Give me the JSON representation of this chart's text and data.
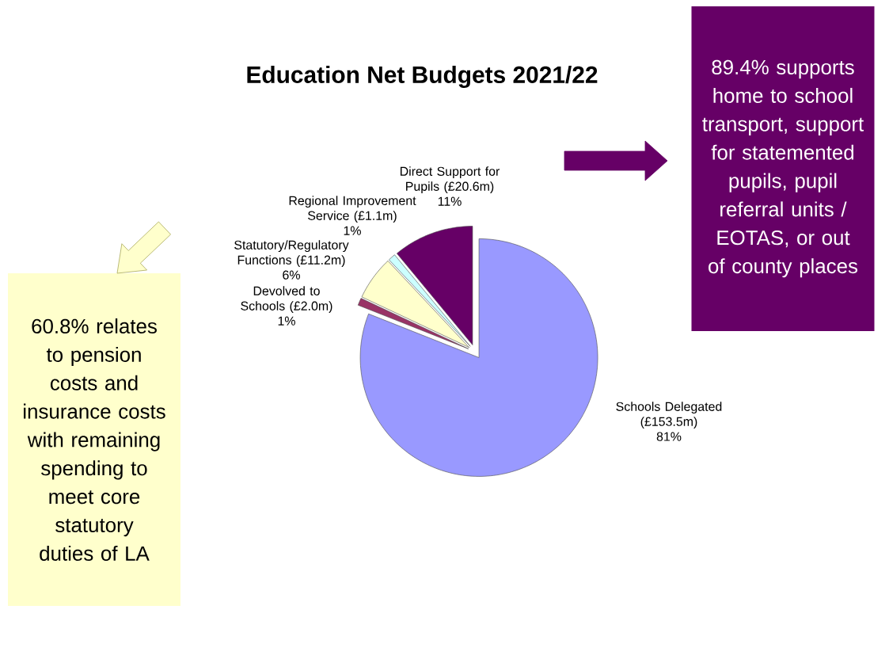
{
  "chart_data": {
    "type": "pie",
    "title": "Education Net Budgets 2021/22",
    "categories": [
      "Schools Delegated (£153.5m)",
      "Devolved to Schools (£2.0m)",
      "Statutory/Regulatory Functions (£11.2m)",
      "Regional Improvement Service (£1.1m)",
      "Direct Support for Pupils (£20.6m)"
    ],
    "values": [
      81,
      1,
      6,
      1,
      11
    ],
    "value_labels": [
      "81%",
      "1%",
      "6%",
      "1%",
      "11%"
    ],
    "colors": [
      "#9999ff",
      "#993366",
      "#ffffcc",
      "#ccffff",
      "#660066"
    ],
    "annotations": [
      "89.4% supports home to school transport, support for statemented pupils, pupil referral units / EOTAS, or out of county places",
      "60.8% relates to pension costs and insurance costs with remaining spending to meet core statutory duties of LA"
    ]
  }
}
